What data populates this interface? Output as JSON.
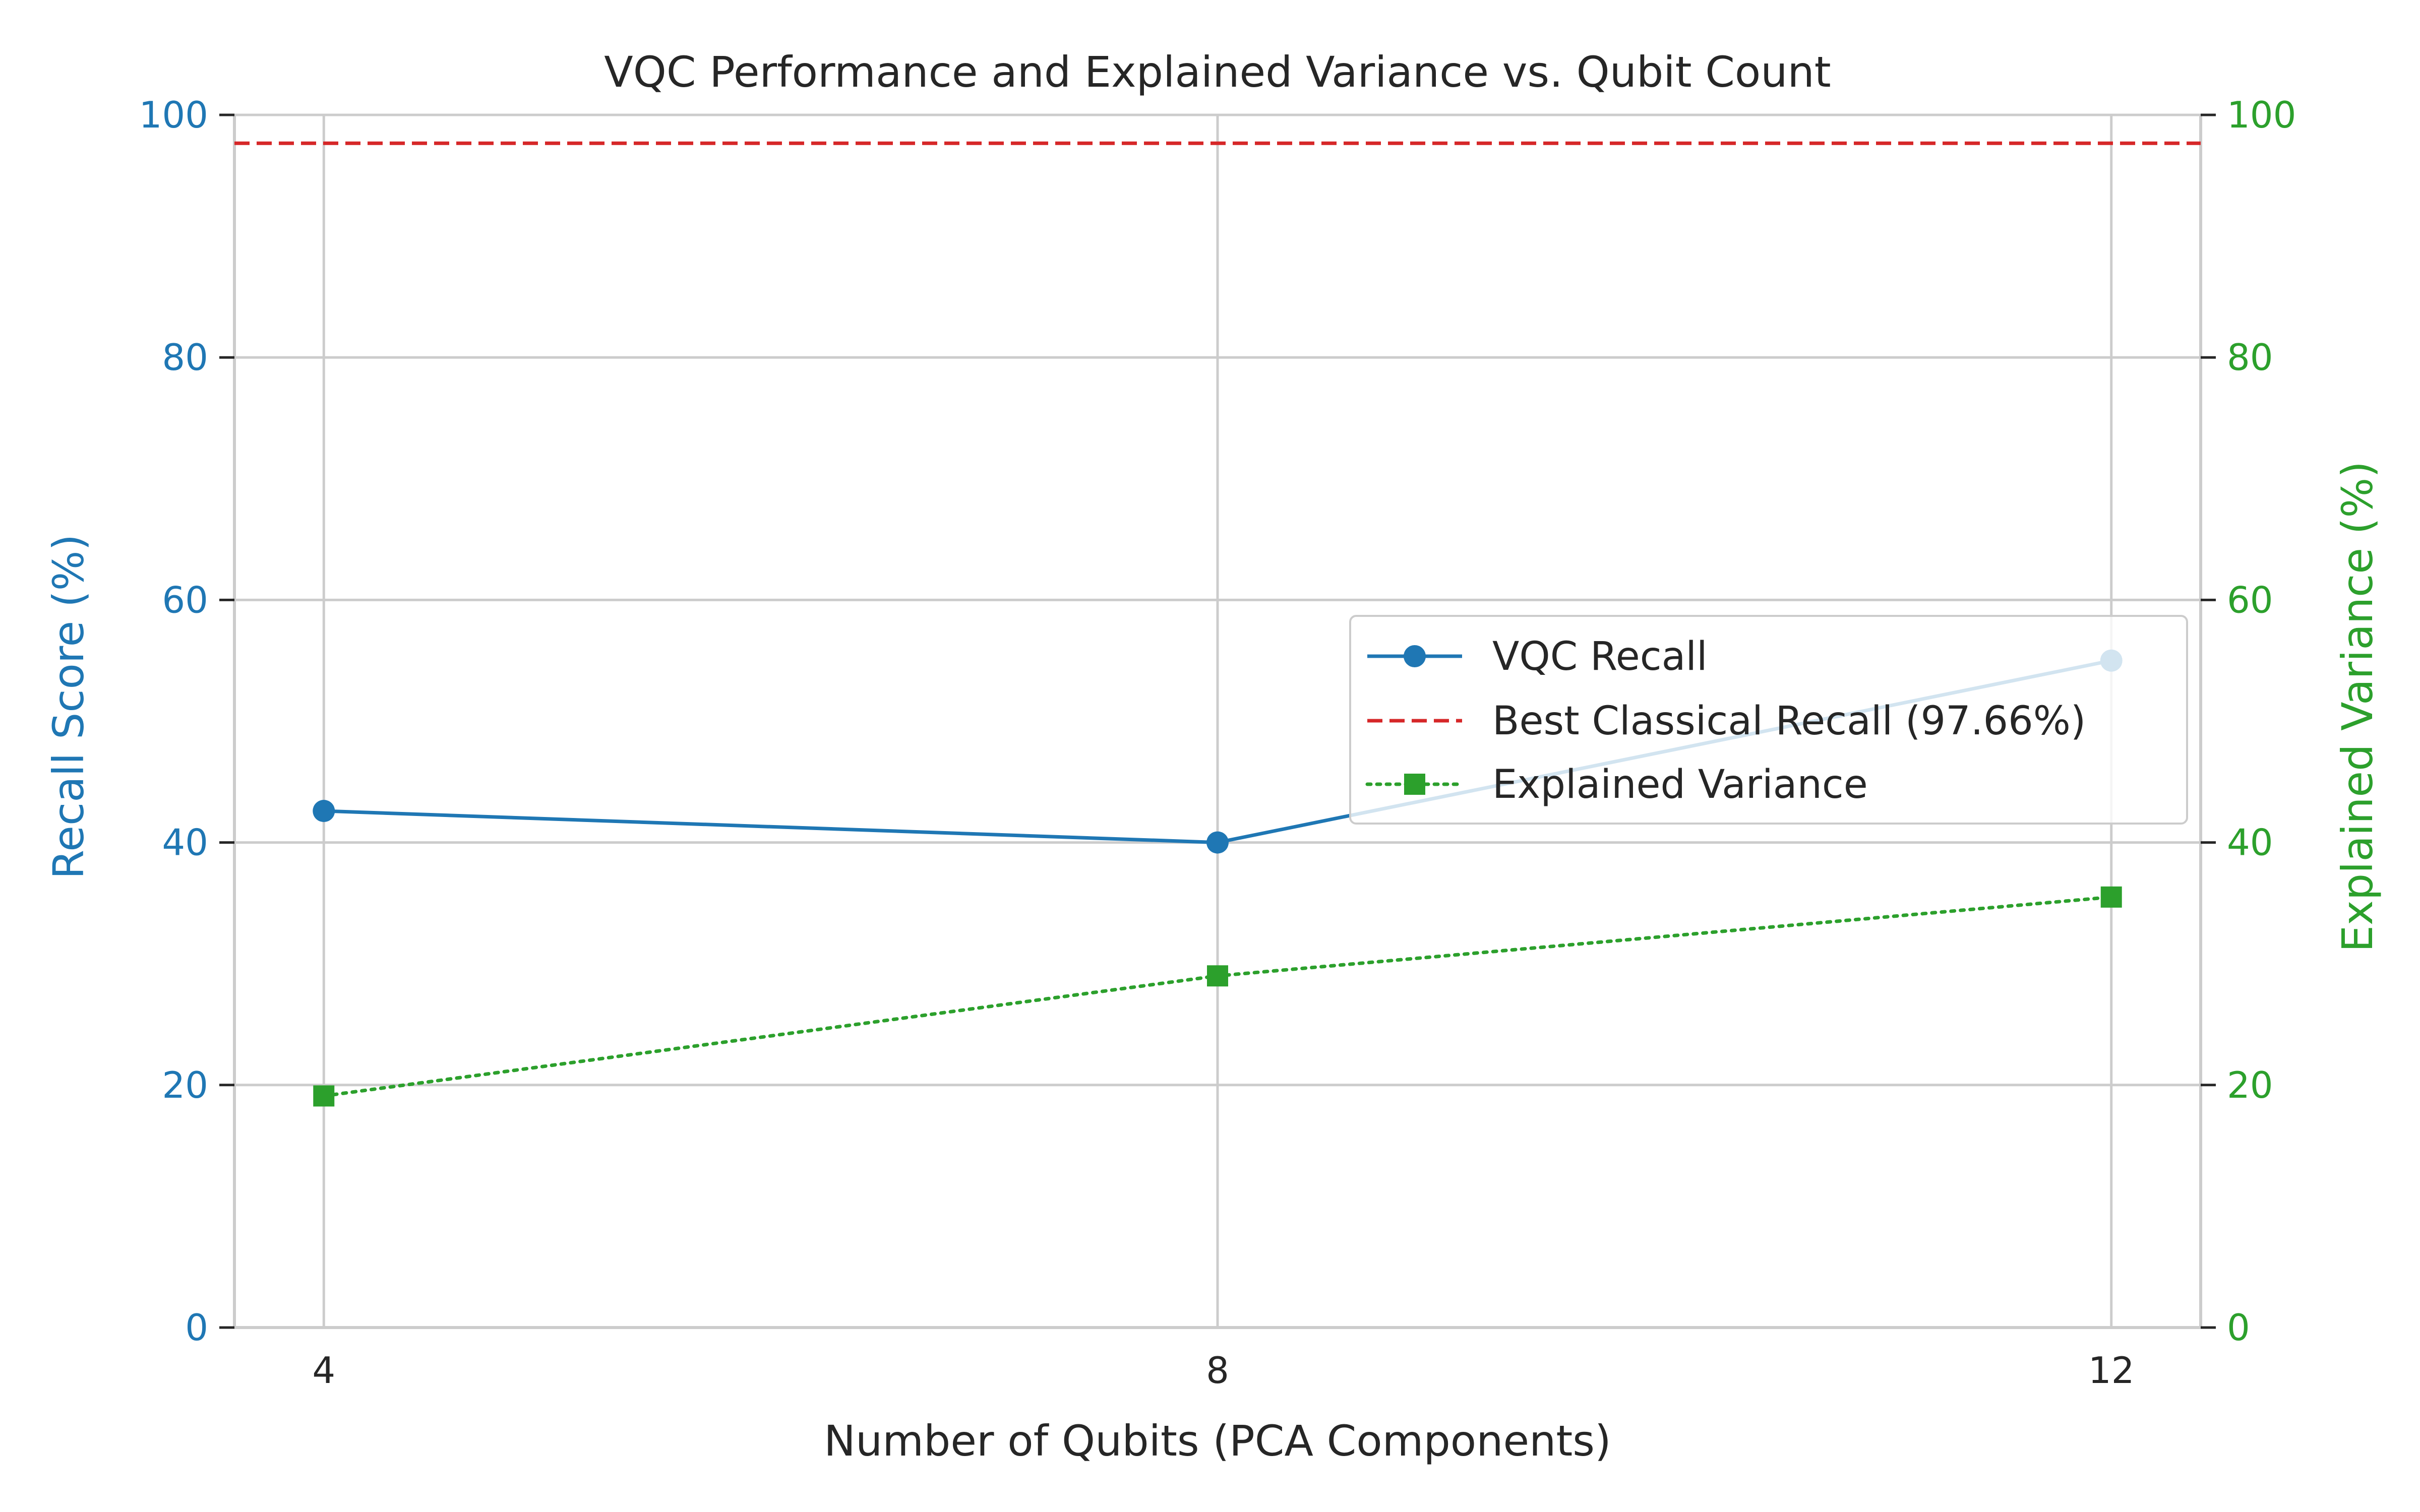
{
  "colors": {
    "recall": "#1f77b4",
    "classical": "#d62728",
    "variance": "#2ca02c",
    "grid": "#cccccc",
    "spine": "#cccccc",
    "text": "#262626",
    "legend_border": "#cccccc"
  },
  "chart_data": {
    "type": "line",
    "title": "VQC Performance and Explained Variance vs. Qubit Count",
    "xlabel": "Number of Qubits (PCA Components)",
    "ylabel": "Recall Score (%)",
    "y2label": "Explained Variance (%)",
    "x": [
      4,
      8,
      12
    ],
    "xticks": [
      "4",
      "8",
      "12"
    ],
    "xlim": [
      3.6,
      12.4
    ],
    "ylim": [
      0,
      100
    ],
    "y2lim": [
      0,
      100
    ],
    "yticks": [
      "0",
      "20",
      "40",
      "60",
      "80",
      "100"
    ],
    "y2ticks": [
      "0",
      "20",
      "40",
      "60",
      "80",
      "100"
    ],
    "grid": true,
    "legend_position": "center-right",
    "series": [
      {
        "name": "VQC Recall",
        "axis": "left",
        "style": "solid",
        "marker": "circle",
        "values": [
          42.6,
          40.0,
          55.0
        ]
      },
      {
        "name": "Best Classical Recall (97.66%)",
        "axis": "left",
        "style": "dashed",
        "marker": "none",
        "values": [
          97.66,
          97.66,
          97.66
        ]
      },
      {
        "name": "Explained Variance",
        "axis": "right",
        "style": "dotted",
        "marker": "square",
        "values": [
          19.1,
          29.0,
          35.5
        ]
      }
    ]
  }
}
